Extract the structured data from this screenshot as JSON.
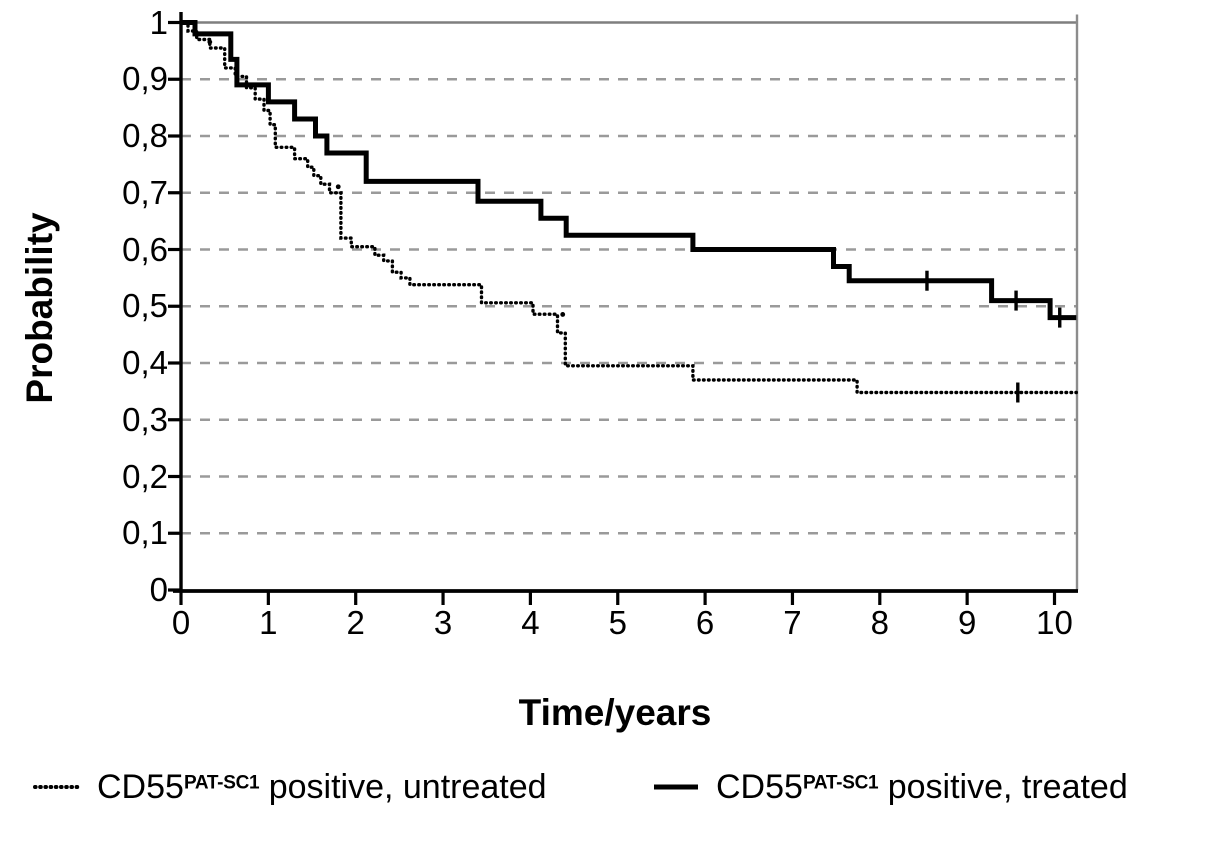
{
  "figure": {
    "kind": "Kaplan-Meier survival plot",
    "background": "#ffffff"
  },
  "axes": {
    "y": {
      "title": "Probability",
      "range": [
        0,
        1
      ],
      "ticks": [
        {
          "label": "1",
          "value": 1.0
        },
        {
          "label": "0,9",
          "value": 0.9
        },
        {
          "label": "0,8",
          "value": 0.8
        },
        {
          "label": "0,7",
          "value": 0.7
        },
        {
          "label": "0,6",
          "value": 0.6
        },
        {
          "label": "0,5",
          "value": 0.5
        },
        {
          "label": "0,4",
          "value": 0.4
        },
        {
          "label": "0,3",
          "value": 0.3
        },
        {
          "label": "0,2",
          "value": 0.2
        },
        {
          "label": "0,1",
          "value": 0.1
        },
        {
          "label": "0",
          "value": 0.0
        }
      ]
    },
    "x": {
      "title": "Time/years",
      "range": [
        0,
        10
      ],
      "ticks": [
        {
          "label": "0",
          "value": 0
        },
        {
          "label": "1",
          "value": 1
        },
        {
          "label": "2",
          "value": 2
        },
        {
          "label": "3",
          "value": 3
        },
        {
          "label": "4",
          "value": 4
        },
        {
          "label": "5",
          "value": 5
        },
        {
          "label": "6",
          "value": 6
        },
        {
          "label": "7",
          "value": 7
        },
        {
          "label": "8",
          "value": 8
        },
        {
          "label": "9",
          "value": 9
        },
        {
          "label": "10",
          "value": 10
        }
      ]
    }
  },
  "legend": {
    "items": [
      {
        "swatch": "dotted",
        "base": "CD55",
        "sup": "PAT-SC1",
        "rest": " positive, untreated"
      },
      {
        "swatch": "solid",
        "base": "CD55",
        "sup": "PAT-SC1",
        "rest": " positive, treated"
      }
    ]
  },
  "colors": {
    "curve": "#000000",
    "grid_dashed": "#9a9a9a",
    "grid_top_solid": "#7f7f7f",
    "frame_right": "#8c8c8c",
    "axis": "#000000"
  },
  "chart_data": {
    "type": "line",
    "subtype": "kaplan-meier-step",
    "title": "",
    "xlabel": "Time/years",
    "ylabel": "Probability",
    "xlim": [
      0,
      10.25
    ],
    "ylim": [
      0,
      1
    ],
    "grid": "horizontal dashed at 0.1 steps, solid gray line at 1.0",
    "legend_position": "below plot",
    "series": [
      {
        "name": "CD55 PAT-SC1 positive, treated",
        "style": "solid",
        "color": "#000000",
        "steps": [
          [
            0,
            1.0
          ],
          [
            0.16,
            0.98
          ],
          [
            0.57,
            0.935
          ],
          [
            0.64,
            0.89
          ],
          [
            1.0,
            0.86
          ],
          [
            1.3,
            0.83
          ],
          [
            1.54,
            0.8
          ],
          [
            1.67,
            0.77
          ],
          [
            2.12,
            0.72
          ],
          [
            3.4,
            0.685
          ],
          [
            4.12,
            0.655
          ],
          [
            4.41,
            0.625
          ],
          [
            5.86,
            0.6
          ],
          [
            7.47,
            0.57
          ],
          [
            7.65,
            0.545
          ],
          [
            9.28,
            0.51
          ],
          [
            9.95,
            0.48
          ]
        ],
        "end_time": 10.25,
        "censor_ticks": [
          [
            8.54,
            0.545
          ],
          [
            9.56,
            0.51
          ],
          [
            10.06,
            0.48
          ]
        ]
      },
      {
        "name": "CD55 PAT-SC1 positive, untreated",
        "style": "dotted",
        "color": "#000000",
        "steps": [
          [
            0,
            1.0
          ],
          [
            0.08,
            0.985
          ],
          [
            0.18,
            0.97
          ],
          [
            0.33,
            0.955
          ],
          [
            0.5,
            0.92
          ],
          [
            0.62,
            0.905
          ],
          [
            0.75,
            0.885
          ],
          [
            0.85,
            0.865
          ],
          [
            0.95,
            0.845
          ],
          [
            1.02,
            0.82
          ],
          [
            1.08,
            0.78
          ],
          [
            1.3,
            0.76
          ],
          [
            1.45,
            0.745
          ],
          [
            1.52,
            0.73
          ],
          [
            1.6,
            0.715
          ],
          [
            1.7,
            0.7
          ],
          [
            1.83,
            0.62
          ],
          [
            1.95,
            0.605
          ],
          [
            2.22,
            0.59
          ],
          [
            2.32,
            0.58
          ],
          [
            2.42,
            0.56
          ],
          [
            2.52,
            0.55
          ],
          [
            2.62,
            0.538
          ],
          [
            3.44,
            0.506
          ],
          [
            4.03,
            0.486
          ],
          [
            4.31,
            0.453
          ],
          [
            4.4,
            0.395
          ],
          [
            5.86,
            0.37
          ],
          [
            7.74,
            0.348
          ]
        ],
        "end_time": 10.25,
        "censor_ticks": [
          [
            9.58,
            0.348
          ]
        ],
        "censor_dots": [
          [
            0.33,
            0.955
          ],
          [
            1.8,
            0.7
          ],
          [
            4.37,
            0.475
          ]
        ]
      }
    ]
  }
}
